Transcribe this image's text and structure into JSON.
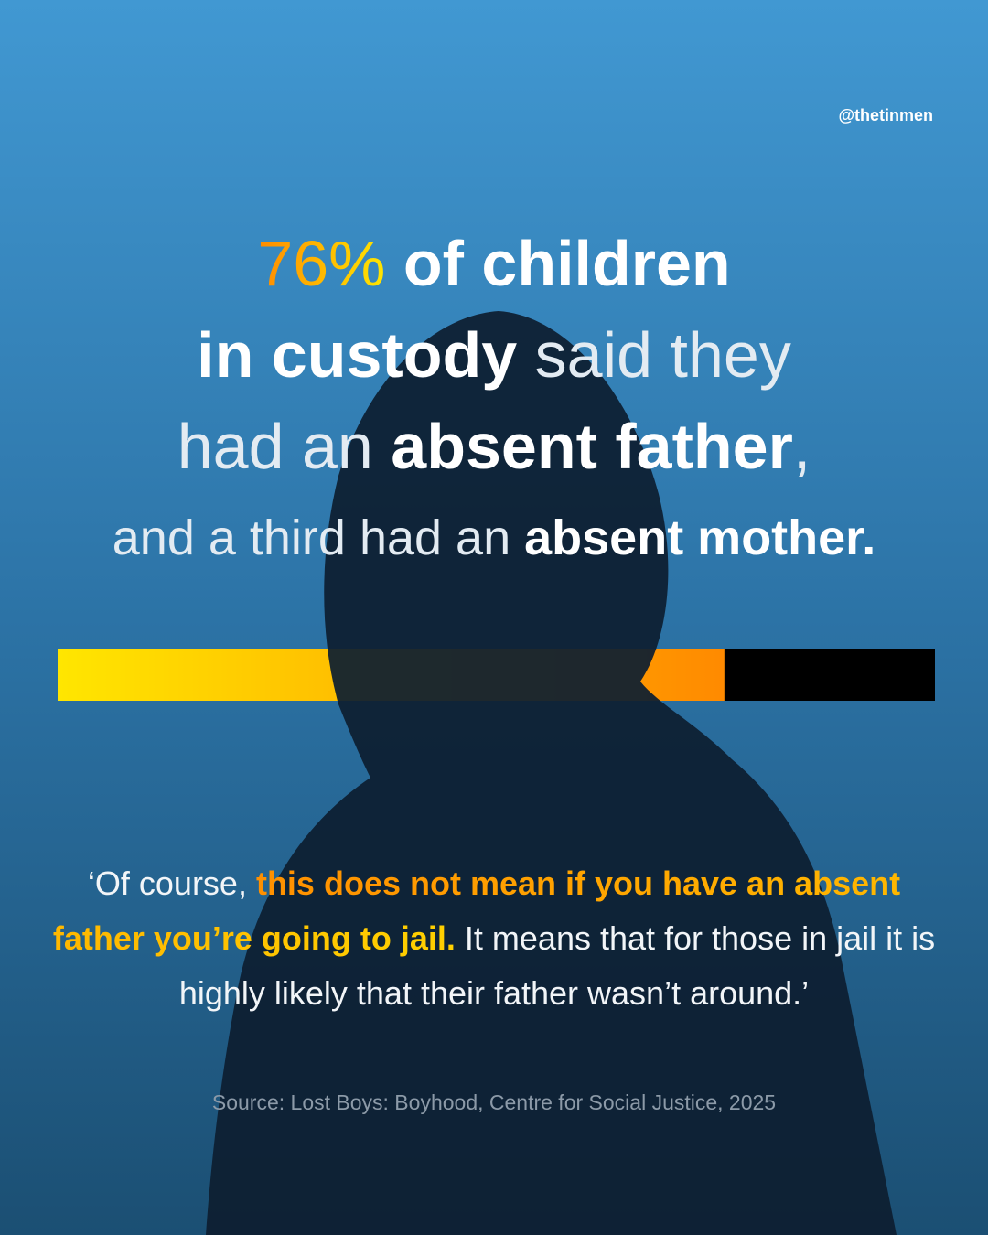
{
  "handle": "@thetinmen",
  "stat": {
    "value": 76,
    "label": "76%",
    "colors": [
      "#ff8a00",
      "#ffe600"
    ]
  },
  "headline": [
    [
      {
        "text": " of children",
        "weight": "bold"
      }
    ],
    [
      {
        "text": "in custody",
        "weight": "bold"
      },
      {
        "text": " said they",
        "weight": "light"
      }
    ],
    [
      {
        "text": "had an ",
        "weight": "light"
      },
      {
        "text": "absent father",
        "weight": "bold"
      },
      {
        "text": ",",
        "weight": "light"
      }
    ],
    [
      {
        "text": "and a third had an ",
        "weight": "light"
      },
      {
        "text": "absent mother.",
        "weight": "bold"
      }
    ]
  ],
  "quote": [
    {
      "text": "‘Of course, ",
      "style": "plain"
    },
    {
      "text": "this does not mean if you have an absent father you’re going to jail.",
      "style": "highlight"
    },
    {
      "text": " It means that for those in jail it is highly likely that their father wasn’t around.’",
      "style": "plain"
    }
  ],
  "source": "Source: Lost Boys: Boyhood, Centre for Social Justice, 2025"
}
